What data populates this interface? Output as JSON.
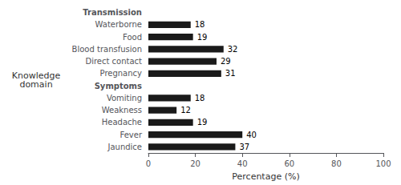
{
  "chart_data": {
    "type": "bar",
    "orientation": "horizontal",
    "categories": [
      "Transmission",
      "Waterborne",
      "Food",
      "Blood transfusion",
      "Direct contact",
      "Pregnancy",
      "Symptoms",
      "Vomiting",
      "Weakness",
      "Headache",
      "Fever",
      "Jaundice"
    ],
    "values": [
      null,
      18,
      19,
      32,
      29,
      31,
      null,
      18,
      12,
      19,
      40,
      37
    ],
    "color": "#1a1a1a",
    "xlabel": "Percentage (%)",
    "ylabel": "Knowledge\ndomain",
    "xlim": [
      0,
      100
    ],
    "xticks": [
      0,
      20,
      40,
      60,
      80,
      100
    ],
    "data_labels": true,
    "grid": false
  }
}
